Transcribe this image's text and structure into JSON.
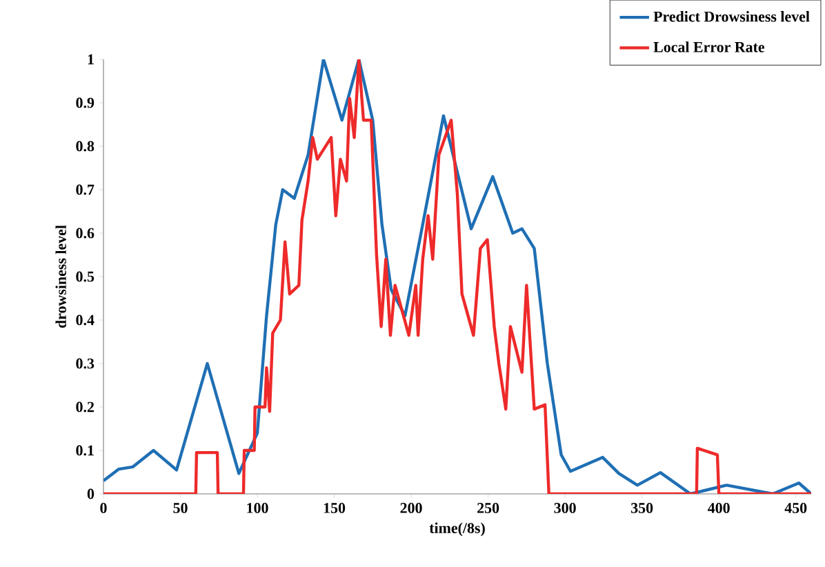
{
  "chart_data": {
    "type": "line",
    "xlabel": "time(/8s)",
    "ylabel": "drowsiness level",
    "xlim": [
      0,
      460
    ],
    "xticks": [
      0,
      50,
      100,
      150,
      200,
      250,
      300,
      350,
      400,
      450
    ],
    "ylim": [
      0,
      1
    ],
    "yticks": [
      0,
      0.1,
      0.2,
      0.3,
      0.4,
      0.5,
      0.6,
      0.7,
      0.8,
      0.9,
      1
    ],
    "grid": false,
    "legend": "top right",
    "marker": "none",
    "line_style": "solid",
    "series": [
      {
        "name": "Predict Drowsiness level",
        "color": "#1f6fb4",
        "x": [
          0,
          10,
          19,
          32.5,
          47.5,
          67.5,
          88,
          100,
          106,
          112,
          116.5,
          124,
          133,
          143,
          155,
          166,
          175,
          181,
          187,
          196,
          207.5,
          221,
          239,
          253,
          266,
          272,
          280,
          288.5,
          297.5,
          303.5,
          324.5,
          335,
          347,
          362,
          381.5,
          405,
          435,
          452,
          460
        ],
        "values": [
          0.03,
          0.057,
          0.062,
          0.1,
          0.055,
          0.3,
          0.047,
          0.14,
          0.41,
          0.62,
          0.7,
          0.68,
          0.78,
          1.0,
          0.86,
          1.0,
          0.86,
          0.62,
          0.47,
          0.41,
          0.62,
          0.87,
          0.61,
          0.73,
          0.6,
          0.61,
          0.565,
          0.3,
          0.09,
          0.052,
          0.084,
          0.047,
          0.02,
          0.049,
          0,
          0.02,
          0,
          0.025,
          0
        ]
      },
      {
        "name": "Local Error Rate",
        "color": "#ee2a2a",
        "x": [
          0,
          60,
          60.5,
          74,
          74.5,
          91,
          91.5,
          98,
          98.5,
          105,
          106,
          108,
          110,
          115,
          118,
          121,
          127,
          129,
          133,
          136,
          139,
          148,
          151,
          154,
          158,
          160,
          163,
          166,
          169,
          174,
          177.5,
          180.5,
          183.5,
          186.5,
          189.5,
          198.5,
          203,
          204.5,
          207.5,
          211,
          214,
          218,
          226,
          230,
          233,
          240.5,
          245,
          249.5,
          254,
          257,
          261.5,
          264.5,
          272,
          275,
          280,
          287,
          289.5,
          385.5,
          386,
          399,
          400,
          460
        ],
        "values": [
          0,
          0,
          0.095,
          0.095,
          0,
          0,
          0.1,
          0.1,
          0.2,
          0.2,
          0.29,
          0.19,
          0.37,
          0.4,
          0.58,
          0.46,
          0.48,
          0.63,
          0.72,
          0.82,
          0.77,
          0.82,
          0.64,
          0.77,
          0.72,
          0.91,
          0.82,
          1.0,
          0.86,
          0.86,
          0.55,
          0.385,
          0.54,
          0.365,
          0.48,
          0.365,
          0.48,
          0.365,
          0.54,
          0.64,
          0.54,
          0.78,
          0.86,
          0.69,
          0.46,
          0.365,
          0.565,
          0.585,
          0.385,
          0.3,
          0.195,
          0.385,
          0.28,
          0.48,
          0.195,
          0.205,
          0,
          0,
          0.105,
          0.09,
          0,
          0
        ]
      }
    ]
  }
}
